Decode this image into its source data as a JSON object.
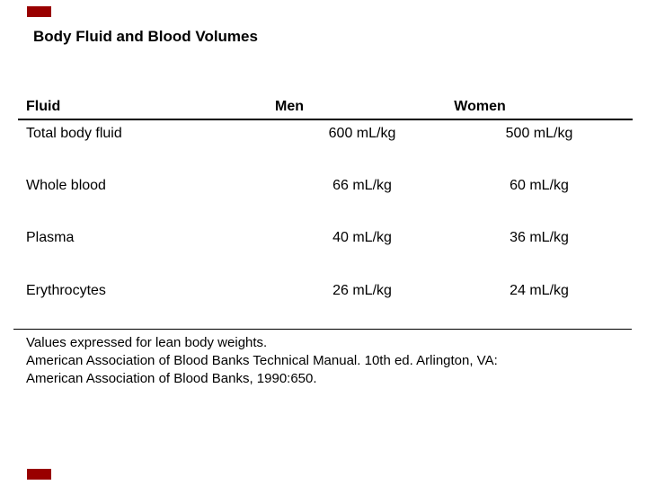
{
  "slide": {
    "title": "Body Fluid and Blood Volumes",
    "accent_color": "#990000"
  },
  "table": {
    "headers": {
      "fluid": "Fluid",
      "men": "Men",
      "women": "Women"
    },
    "rows": [
      {
        "fluid": "Total body fluid",
        "men": "600 mL/kg",
        "women": "500 mL/kg"
      },
      {
        "fluid": "Whole blood",
        "men": "66 mL/kg",
        "women": "60 mL/kg"
      },
      {
        "fluid": "Plasma",
        "men": "40 mL/kg",
        "women": "36 mL/kg"
      },
      {
        "fluid": "Erythrocytes",
        "men": "26 mL/kg",
        "women": "24 mL/kg"
      }
    ]
  },
  "footnote": {
    "lines": [
      "Values expressed for lean body weights.",
      "American Association of Blood Banks Technical Manual. 10th ed. Arlington, VA:",
      "American Association of Blood Banks, 1990:650."
    ]
  }
}
